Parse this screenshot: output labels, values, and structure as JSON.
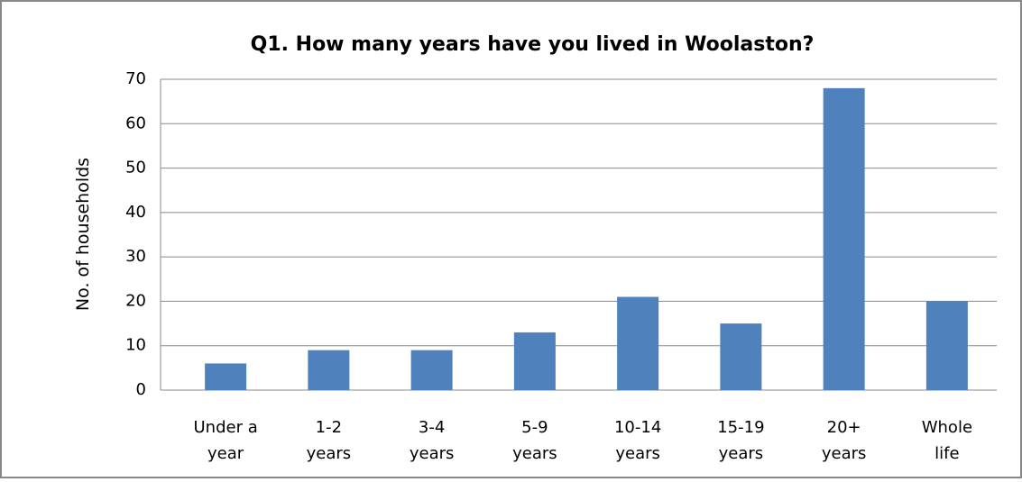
{
  "chart_data": {
    "type": "bar",
    "title": "Q1. How many years have you lived in Woolaston?",
    "y_label": "No. of households",
    "categories": [
      "Under a year",
      "1-2 years",
      "3-4 years",
      "5-9 years",
      "10-14 years",
      "15-19 years",
      "20+ years",
      "Whole life"
    ],
    "values": [
      6,
      9,
      9,
      13,
      21,
      15,
      68,
      20
    ],
    "color": "#4f81bd",
    "ylim": [
      0,
      70
    ],
    "yticks": [
      0,
      10,
      20,
      30,
      40,
      50,
      60,
      70
    ],
    "grid": true
  }
}
